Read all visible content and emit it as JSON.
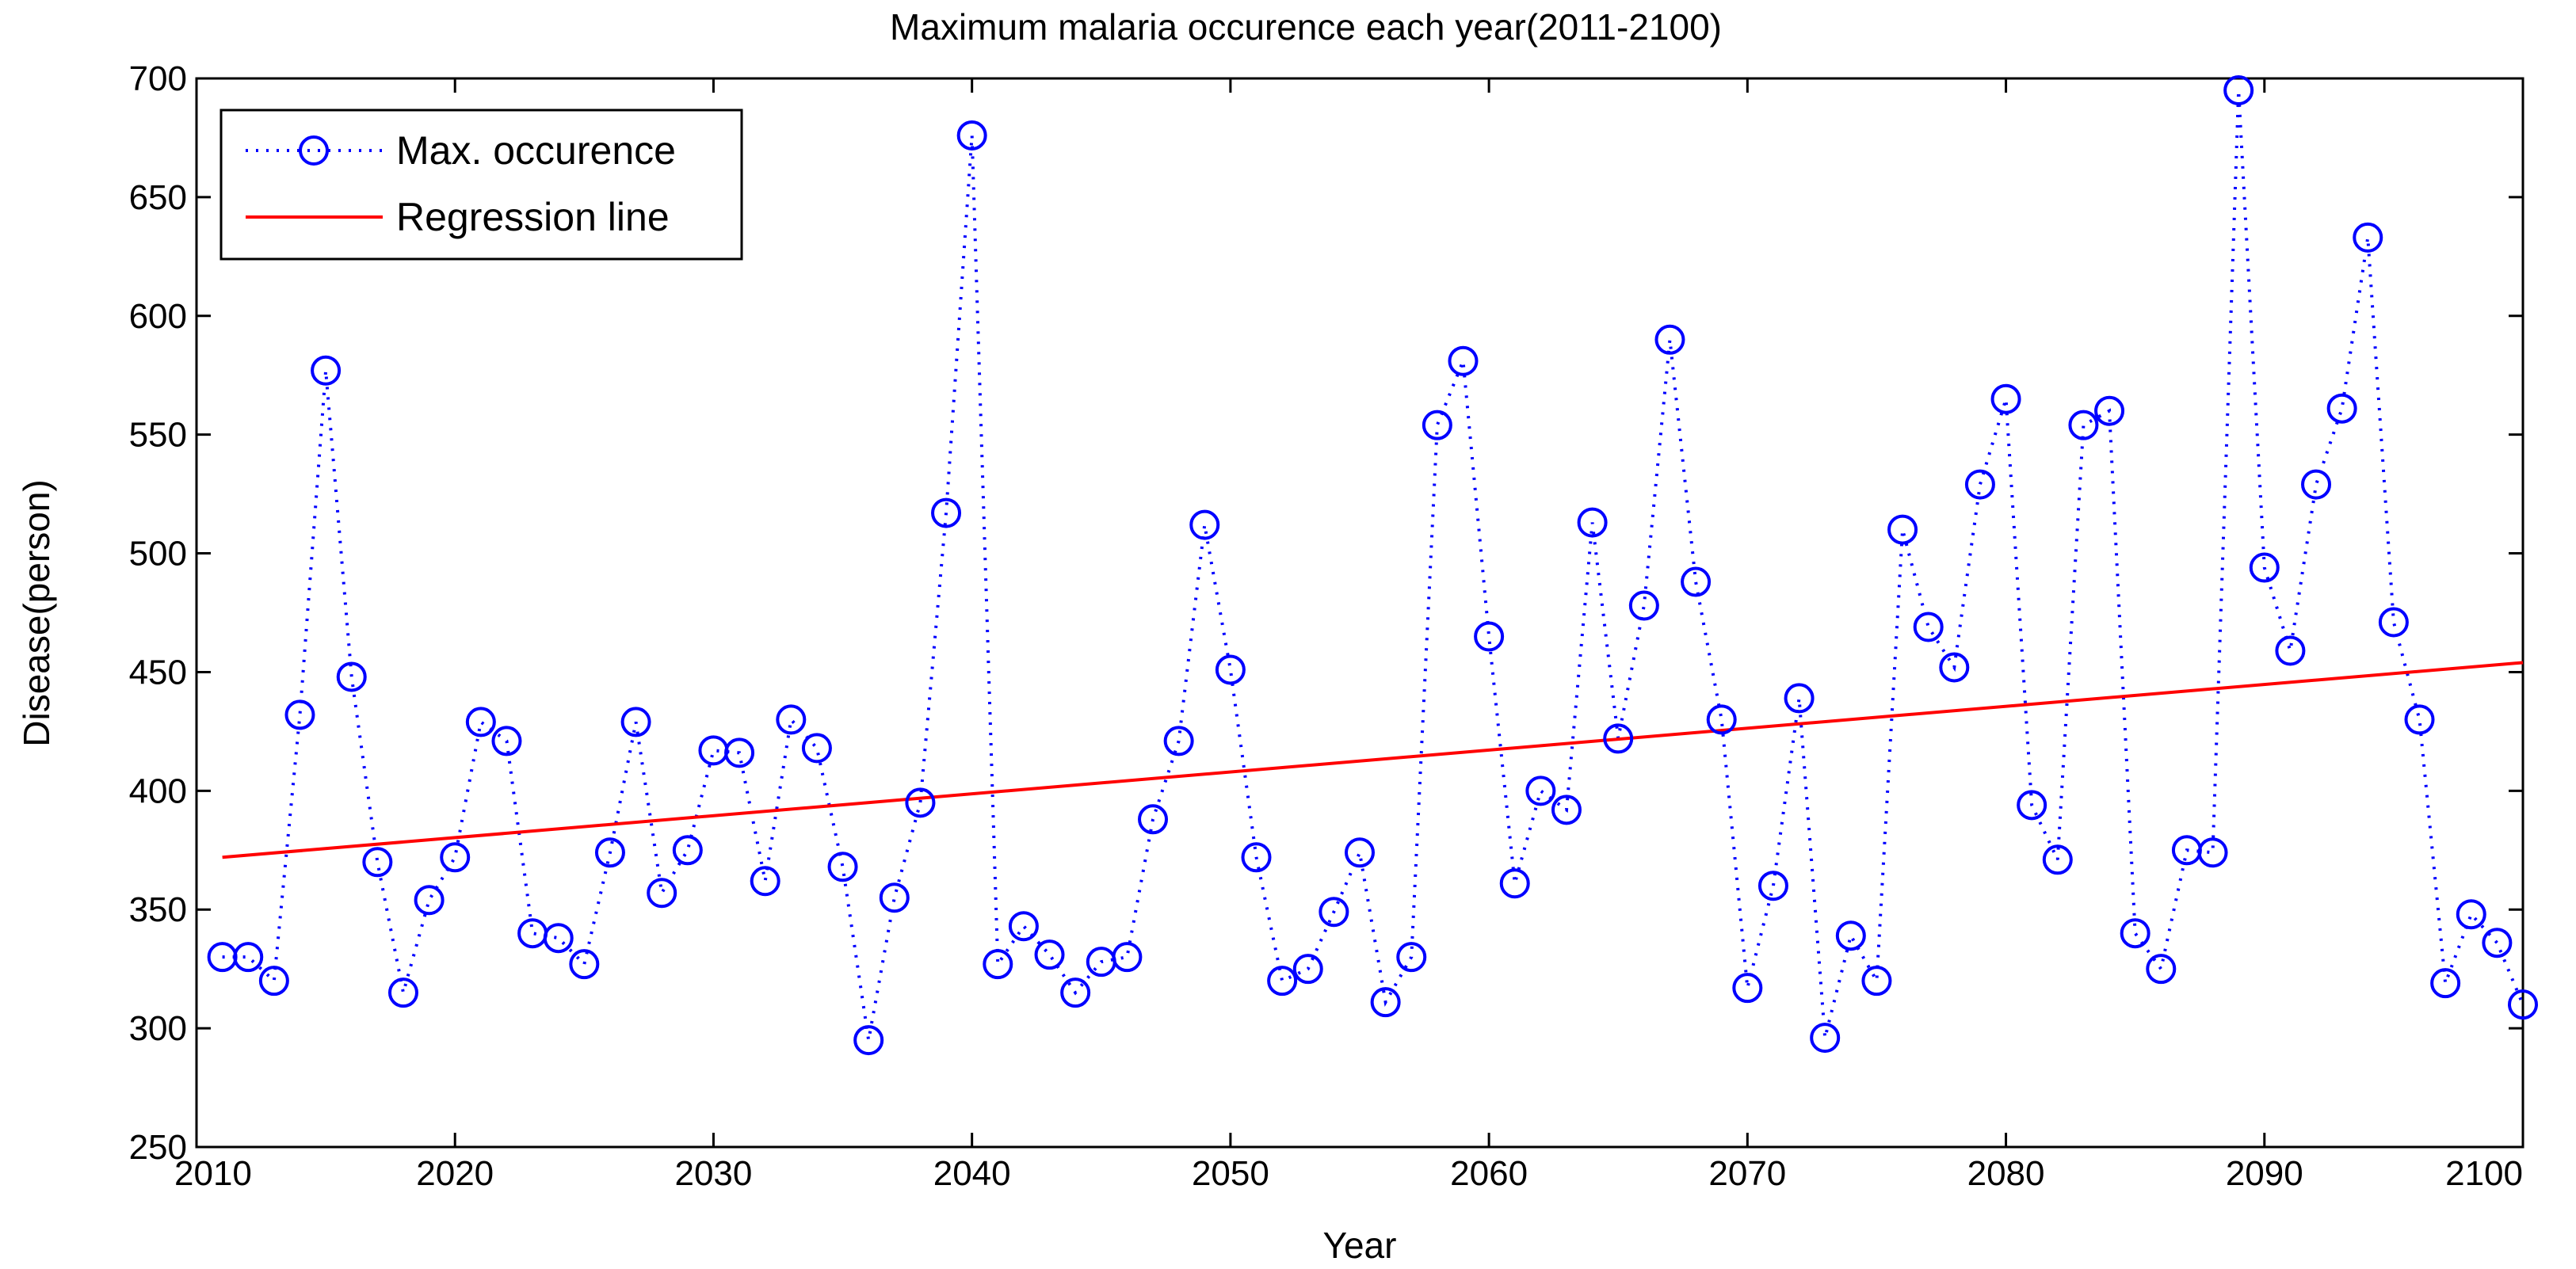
{
  "chart_data": {
    "type": "line",
    "title": "Maximum malaria occurence each year(2011-2100)",
    "xlabel": "Year",
    "ylabel": "Disease(person)",
    "xlim": [
      2010,
      2100
    ],
    "ylim": [
      250,
      700
    ],
    "xticks": [
      2010,
      2020,
      2030,
      2040,
      2050,
      2060,
      2070,
      2080,
      2090,
      2100
    ],
    "yticks": [
      250,
      300,
      350,
      400,
      450,
      500,
      550,
      600,
      650,
      700
    ],
    "grid": false,
    "legend_position": "top-left",
    "colors": {
      "occurrence": "#0000ff",
      "regression": "#ff0000",
      "axis": "#000000"
    },
    "series": [
      {
        "name": "Max. occurence",
        "style": "dotted-circles",
        "x": [
          2011,
          2012,
          2013,
          2014,
          2015,
          2016,
          2017,
          2018,
          2019,
          2020,
          2021,
          2022,
          2023,
          2024,
          2025,
          2026,
          2027,
          2028,
          2029,
          2030,
          2031,
          2032,
          2033,
          2034,
          2035,
          2036,
          2037,
          2038,
          2039,
          2040,
          2041,
          2042,
          2043,
          2044,
          2045,
          2046,
          2047,
          2048,
          2049,
          2050,
          2051,
          2052,
          2053,
          2054,
          2055,
          2056,
          2057,
          2058,
          2059,
          2060,
          2061,
          2062,
          2063,
          2064,
          2065,
          2066,
          2067,
          2068,
          2069,
          2070,
          2071,
          2072,
          2073,
          2074,
          2075,
          2076,
          2077,
          2078,
          2079,
          2080,
          2081,
          2082,
          2083,
          2084,
          2085,
          2086,
          2087,
          2088,
          2089,
          2090,
          2091,
          2092,
          2093,
          2094,
          2095,
          2096,
          2097,
          2098,
          2099,
          2100
        ],
        "y": [
          330,
          330,
          320,
          432,
          577,
          448,
          370,
          315,
          354,
          372,
          429,
          421,
          340,
          338,
          327,
          374,
          429,
          357,
          375,
          417,
          416,
          362,
          430,
          418,
          368,
          295,
          355,
          395,
          517,
          676,
          327,
          343,
          331,
          315,
          328,
          330,
          388,
          421,
          512,
          451,
          372,
          320,
          325,
          349,
          374,
          311,
          330,
          554,
          581,
          465,
          361,
          400,
          392,
          513,
          422,
          478,
          590,
          488,
          430,
          317,
          360,
          439,
          296,
          339,
          320,
          510,
          469,
          452,
          529,
          565,
          394,
          371,
          554,
          560,
          340,
          325,
          375,
          374,
          695,
          494,
          459,
          529,
          561,
          633,
          471,
          430,
          319,
          348,
          336,
          310
        ]
      },
      {
        "name": "Regression line",
        "style": "solid",
        "x": [
          2011,
          2100
        ],
        "y": [
          372,
          454
        ]
      }
    ]
  }
}
